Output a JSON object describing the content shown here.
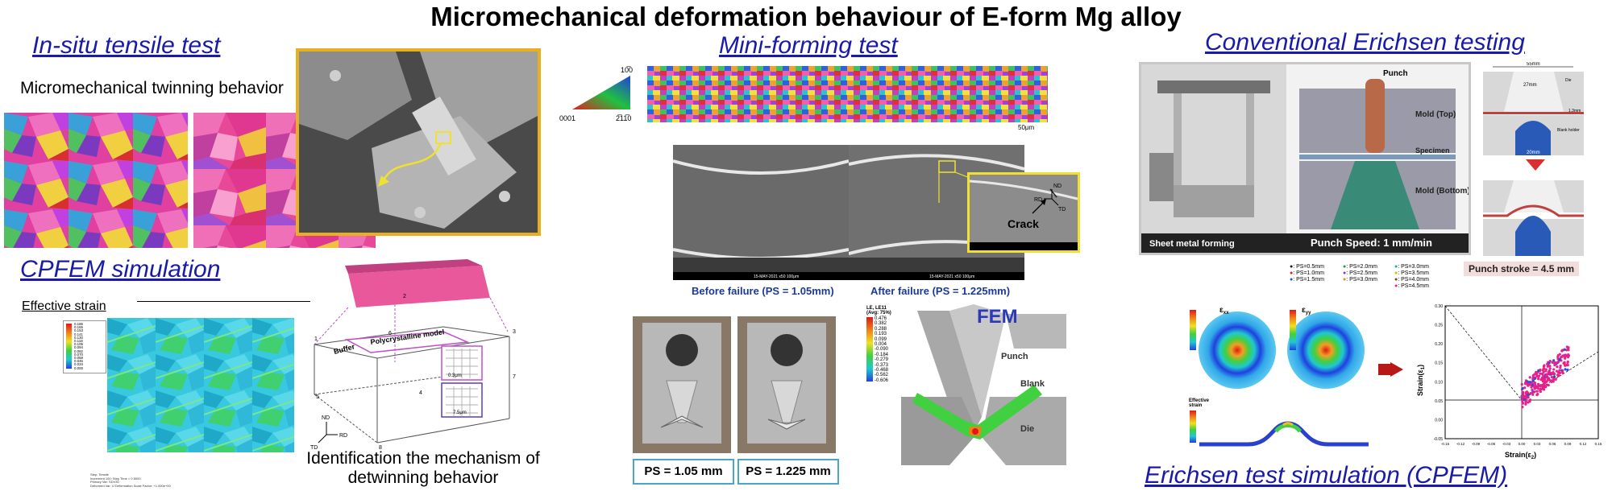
{
  "title": "Micromechanical deformation behaviour of E-form Mg alloy",
  "sections": {
    "insitu": "In-situ tensile test",
    "miniforming": "Mini-forming test",
    "erichsen": "Conventional Erichsen testing",
    "cpfem": "CPFEM simulation",
    "erichsen_sim": "Erichsen test simulation (CPFEM)"
  },
  "insitu": {
    "twinning_label": "Micromechanical twinning behavior"
  },
  "cpfem": {
    "effective_strain": "Effective strain",
    "detwinning_caption_line1": "Identification the mechanism of",
    "detwinning_caption_line2": "detwinning behavior",
    "model_labels": {
      "buffer": "Buffer",
      "polycrystalline": "Polycrystalline model",
      "size_small": "0.3μm",
      "size_large": "7.5μm",
      "nd": "ND",
      "rd": "RD",
      "td": "TD"
    },
    "node_numbers": [
      "1",
      "2",
      "3",
      "4",
      "5",
      "6",
      "7",
      "8"
    ],
    "legend_values": [
      "0.186",
      "0.165",
      "0.153",
      "0.141",
      "0.130",
      "0.118",
      "0.106",
      "0.094",
      "0.082",
      "0.070",
      "0.058",
      "0.046",
      "0.034",
      "0.000"
    ],
    "footer_lines": [
      "Step: Tensile",
      "Increment 100: Step Time = 0.5000",
      "Primary Var: SDV30",
      "Deformed Var: U  Deformation Scale Factor: +1.000e+00"
    ]
  },
  "mini": {
    "ipf_labels": {
      "top": "10̅0",
      "left": "0001",
      "right": "2̅11̅0"
    },
    "scale": "50μm",
    "before": "Before failure (PS = 1.05mm)",
    "after": "After failure (PS = 1.225mm)",
    "crack": "Crack",
    "inset_axes": {
      "nd": "ND",
      "rd": "RD",
      "td": "TD"
    },
    "sem_footer": "15-MAY-2021  x50  100μm",
    "ps1": "PS = 1.05 mm",
    "ps2": "PS = 1.225 mm",
    "fem": "FEM",
    "fem_labels": {
      "punch": "Punch",
      "blank": "Blank",
      "die": "Die"
    },
    "le_legend_title": [
      "LE, LE11",
      "(Avg: 75%)"
    ],
    "le_values": [
      "0.476",
      "0.382",
      "0.288",
      "0.193",
      "0.099",
      "0.004",
      "-0.090",
      "-0.184",
      "-0.279",
      "-0.373",
      "-0.468",
      "-0.562",
      "-0.606"
    ]
  },
  "erichsen": {
    "sheet_metal_forming": "Sheet metal forming",
    "punch_speed": "Punch Speed: 1 mm/min",
    "labels": {
      "punch": "Punch",
      "mold_top": "Mold (Top)",
      "mold_bottom": "Mold (Bottom)",
      "specimen": "Specimen"
    },
    "dims": {
      "d55": "55mm",
      "d27": "27mm",
      "d13": "1.3mm",
      "d20": "20mm",
      "die": "Die",
      "blank_holder": "Blank holder"
    },
    "punch_stroke": "Punch stroke = 4.5 mm",
    "ps_legend": [
      {
        "label": ": PS=0.5mm",
        "color": "#1a1a1a"
      },
      {
        "label": ": PS=1.0mm",
        "color": "#d92020"
      },
      {
        "label": ": PS=1.5mm",
        "color": "#2a4fd8"
      },
      {
        "label": ": PS=2.0mm",
        "color": "#20a030"
      },
      {
        "label": ": PS=2.5mm",
        "color": "#8a3ab8"
      },
      {
        "label": ": PS=3.0mm",
        "color": "#e08a10"
      },
      {
        "label": ": PS=3.0mm",
        "color": "#14a8b8"
      },
      {
        "label": ": PS=3.5mm",
        "color": "#d8b810"
      },
      {
        "label": ": PS=4.0mm",
        "color": "#704020"
      },
      {
        "label": ": PS=4.5mm",
        "color": "#e8208a"
      }
    ],
    "exx": "ε",
    "exx_sub": "xx",
    "eyy": "ε",
    "eyy_sub": "yy",
    "effective_strain_label": [
      "Effective",
      "strain"
    ],
    "strain_y": "Strain(ε",
    "strain_y_sub": "1",
    "strain_x": "Strain(ε",
    "strain_x_sub": "2",
    "plot_y_ticks": [
      "0.30",
      "0.25",
      "0.20",
      "0.15",
      "0.10",
      "0.05",
      "0.00",
      "-0.05"
    ],
    "plot_x_ticks": [
      "-0.15",
      "-0.12",
      "-0.09",
      "-0.06",
      "-0.03",
      "0.00",
      "0.03",
      "0.06",
      "0.09",
      "0.12",
      "0.15"
    ]
  },
  "colors": {
    "accent_blue": "#1a1aa8",
    "gold": "#e8b020",
    "magenta": "#c050c8",
    "cyan": "#4aa5c8",
    "yellow": "#f0e030"
  }
}
